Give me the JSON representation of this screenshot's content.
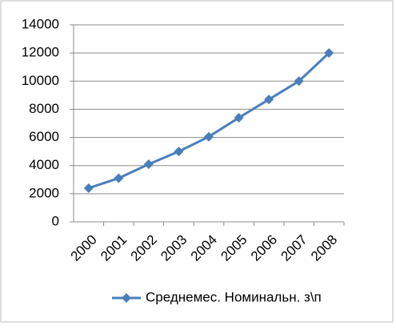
{
  "chart_data": {
    "type": "line",
    "categories": [
      "2000",
      "2001",
      "2002",
      "2003",
      "2004",
      "2005",
      "2006",
      "2007",
      "2008"
    ],
    "series": [
      {
        "name": "Среднемес. Номинальн. з\\п",
        "color": "#4a7ebb",
        "values": [
          2400,
          3100,
          4100,
          5000,
          6050,
          7400,
          8700,
          10000,
          12000
        ]
      }
    ],
    "ylim": [
      0,
      14000
    ],
    "yticks": [
      0,
      2000,
      4000,
      6000,
      8000,
      10000,
      12000,
      14000
    ],
    "grid": true
  }
}
